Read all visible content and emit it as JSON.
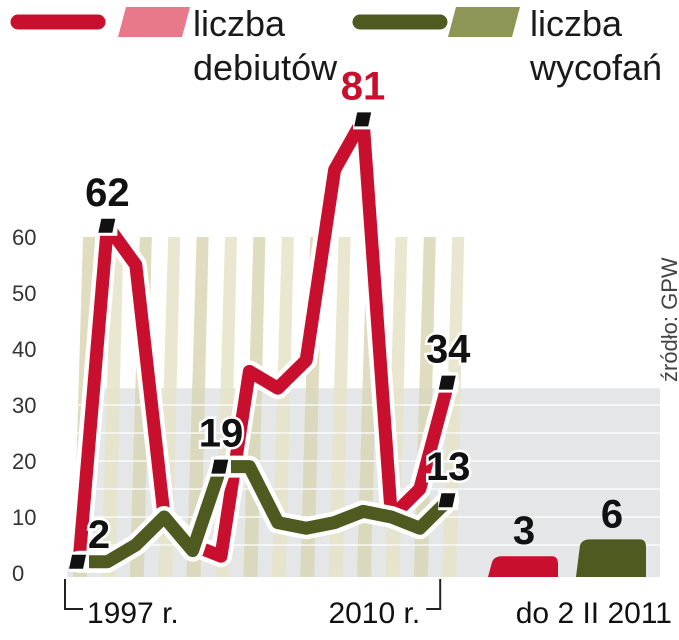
{
  "legend": [
    {
      "label_line1": "liczba",
      "label_line2": "debiutów",
      "color": "#c8102e",
      "light": "#e8798a"
    },
    {
      "label_line1": "liczba",
      "label_line2": "wycofań",
      "color": "#4e5a1f",
      "light": "#8d9657"
    }
  ],
  "source": "źródło: GPW",
  "chart_data": {
    "type": "line",
    "title": "",
    "xlabel": "",
    "ylabel": "",
    "ylim": [
      0,
      65
    ],
    "yticks": [
      0,
      10,
      20,
      30,
      40,
      50,
      60
    ],
    "x": [
      1997,
      1998,
      1999,
      2000,
      2001,
      2002,
      2003,
      2004,
      2005,
      2006,
      2007,
      2008,
      2009,
      2010
    ],
    "x_labels": {
      "start": "1997 r.",
      "end": "2010 r."
    },
    "series": [
      {
        "name": "liczba debiutów",
        "color": "#c8102e",
        "values": [
          2,
          62,
          55,
          10,
          5,
          3,
          36,
          33,
          38,
          72,
          81,
          10,
          15,
          34
        ]
      },
      {
        "name": "liczba wycofań",
        "color": "#4e5a1f",
        "values": [
          2,
          2,
          5,
          10,
          4,
          19,
          19,
          9,
          8,
          9,
          11,
          10,
          8,
          13
        ]
      }
    ],
    "point_labels": [
      {
        "series": 0,
        "index": 1,
        "text": "62"
      },
      {
        "series": 0,
        "index": 10,
        "text": "81"
      },
      {
        "series": 0,
        "index": 13,
        "text": "34"
      },
      {
        "series": 1,
        "index": 0,
        "text": "2"
      },
      {
        "series": 1,
        "index": 5,
        "text": "19"
      },
      {
        "series": 1,
        "index": 13,
        "text": "13"
      }
    ],
    "extra": {
      "label": "do 2 II 2011",
      "bars": [
        {
          "series": 0,
          "value": 3,
          "text": "3"
        },
        {
          "series": 1,
          "value": 6,
          "text": "6"
        }
      ]
    }
  }
}
